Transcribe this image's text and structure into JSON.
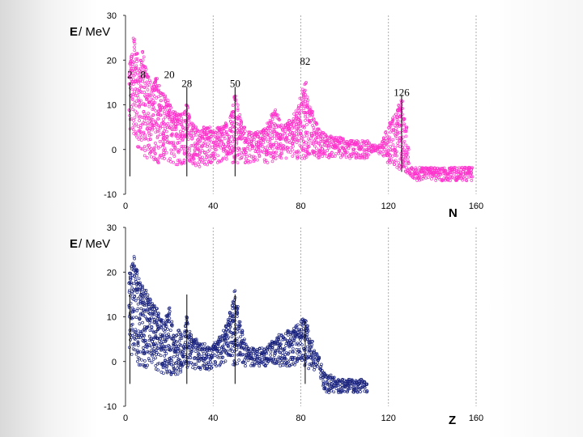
{
  "chart_data": [
    {
      "type": "scatter",
      "title": "",
      "ylabel_symbol": "E",
      "ylabel_unit": " / MeV",
      "xlabel": "N",
      "xlim": [
        0,
        160
      ],
      "ylim": [
        -10,
        30
      ],
      "xticks": [
        0,
        40,
        80,
        120,
        160
      ],
      "yticks": [
        -10,
        0,
        10,
        20,
        30
      ],
      "color": "#ff33cc",
      "magic_numbers": [
        {
          "label": "2",
          "x": 2,
          "top": 16
        },
        {
          "label": "8",
          "x": 8,
          "top": 16
        },
        {
          "label": "20",
          "x": 20,
          "top": 16
        },
        {
          "label": "28",
          "x": 28,
          "top": 14
        },
        {
          "label": "50",
          "x": 50,
          "top": 14
        },
        {
          "label": "82",
          "x": 82,
          "top": 19
        },
        {
          "label": "126",
          "x": 126,
          "top": 12
        }
      ],
      "marker_lines": [
        {
          "x": 2,
          "y1": 15,
          "y2": -6
        },
        {
          "x": 28,
          "y1": 14,
          "y2": -6
        },
        {
          "x": 50,
          "y1": 14,
          "y2": -6
        },
        {
          "x": 126,
          "y1": 12,
          "y2": -5
        }
      ],
      "envelope": {
        "x": [
          2,
          4,
          6,
          8,
          10,
          12,
          14,
          16,
          18,
          20,
          22,
          24,
          26,
          28,
          30,
          32,
          34,
          36,
          38,
          40,
          42,
          44,
          46,
          48,
          50,
          52,
          54,
          56,
          58,
          60,
          62,
          64,
          66,
          68,
          70,
          72,
          74,
          76,
          78,
          80,
          82,
          84,
          86,
          88,
          90,
          92,
          94,
          96,
          98,
          100,
          102,
          104,
          106,
          108,
          110,
          112,
          114,
          116,
          118,
          120,
          122,
          124,
          126,
          128,
          130,
          132,
          134,
          136,
          138,
          140,
          142,
          144,
          146,
          148,
          150,
          152,
          154,
          156,
          158
        ],
        "upper": [
          20,
          25,
          18,
          22,
          17,
          14,
          16,
          13,
          12,
          10,
          9,
          8,
          8,
          10,
          6,
          5,
          4,
          5,
          5,
          4,
          5,
          5,
          6,
          8,
          12,
          8,
          5,
          4,
          4,
          4,
          4,
          5,
          7,
          9,
          7,
          5,
          6,
          7,
          9,
          12,
          15,
          10,
          7,
          5,
          4,
          3,
          3,
          3,
          3,
          2,
          2,
          2,
          2,
          2,
          2,
          1,
          1,
          1,
          3,
          5,
          7,
          9,
          11,
          5,
          -4,
          -4,
          -4,
          -4,
          -4,
          -4,
          -4,
          -4,
          -4,
          -4,
          -4,
          -4,
          -4,
          -4,
          -4
        ],
        "lower": [
          4,
          3,
          0,
          -1,
          -2,
          -2,
          -3,
          -3,
          -3,
          -3,
          -3,
          -4,
          -4,
          -3,
          -3,
          -4,
          -4,
          -4,
          -4,
          -3,
          -3,
          -3,
          -3,
          -3,
          -3,
          -3,
          -3,
          -3,
          -3,
          -3,
          -3,
          -3,
          -3,
          -3,
          -2,
          -2,
          -2,
          -2,
          -2,
          -2,
          -2,
          -2,
          -2,
          -2,
          -2,
          -2,
          -2,
          -2,
          -2,
          -2,
          -2,
          -2,
          -2,
          -2,
          -2,
          -1,
          -1,
          -1,
          -2,
          -3,
          -3,
          -4,
          -5,
          -6,
          -6,
          -7,
          -7,
          -7,
          -7,
          -7,
          -7,
          -7,
          -7,
          -7,
          -7,
          -7,
          -7,
          -7,
          -7
        ]
      }
    },
    {
      "type": "scatter",
      "title": "",
      "ylabel_symbol": "E",
      "ylabel_unit": " / MeV",
      "xlabel": "Z",
      "xlim": [
        0,
        160
      ],
      "ylim": [
        -10,
        30
      ],
      "xticks": [
        0,
        40,
        80,
        120,
        160
      ],
      "yticks": [
        -10,
        0,
        10,
        20,
        30
      ],
      "color": "#1a237e",
      "marker_lines": [
        {
          "x": 2,
          "y1": 15,
          "y2": -5
        },
        {
          "x": 28,
          "y1": 15,
          "y2": -5
        },
        {
          "x": 50,
          "y1": 15,
          "y2": -5
        },
        {
          "x": 82,
          "y1": 9,
          "y2": -5
        }
      ],
      "envelope": {
        "x": [
          2,
          4,
          6,
          8,
          10,
          12,
          14,
          16,
          18,
          20,
          22,
          24,
          26,
          28,
          30,
          32,
          34,
          36,
          38,
          40,
          42,
          44,
          46,
          48,
          50,
          52,
          54,
          56,
          58,
          60,
          62,
          64,
          66,
          68,
          70,
          72,
          74,
          76,
          78,
          80,
          82,
          84,
          86,
          88,
          90,
          92,
          94,
          96,
          98,
          100,
          102,
          104,
          106,
          108,
          110
        ],
        "upper": [
          20,
          24,
          19,
          17,
          15,
          13,
          12,
          10,
          9,
          12,
          6,
          7,
          6,
          10,
          6,
          5,
          4,
          4,
          4,
          4,
          5,
          6,
          8,
          11,
          16,
          9,
          5,
          3,
          3,
          3,
          3,
          3,
          4,
          5,
          6,
          6,
          7,
          7,
          8,
          9,
          10,
          6,
          3,
          1,
          -2,
          -3,
          -3,
          -4,
          -4,
          -4,
          -4,
          -4,
          -4,
          -4,
          -5
        ],
        "lower": [
          2,
          1,
          -1,
          -1,
          -2,
          -2,
          -2,
          -3,
          -3,
          -3,
          -3,
          -3,
          -2,
          -2,
          -2,
          -2,
          -2,
          -2,
          -2,
          -1,
          -1,
          -1,
          -1,
          -1,
          -1,
          -1,
          -1,
          -1,
          -1,
          -1,
          -1,
          -1,
          -1,
          -1,
          -1,
          -1,
          -1,
          -1,
          -1,
          -1,
          -1,
          -2,
          -2,
          -2,
          -6,
          -7,
          -7,
          -7,
          -7,
          -7,
          -7,
          -7,
          -7,
          -7,
          -7
        ]
      }
    }
  ]
}
